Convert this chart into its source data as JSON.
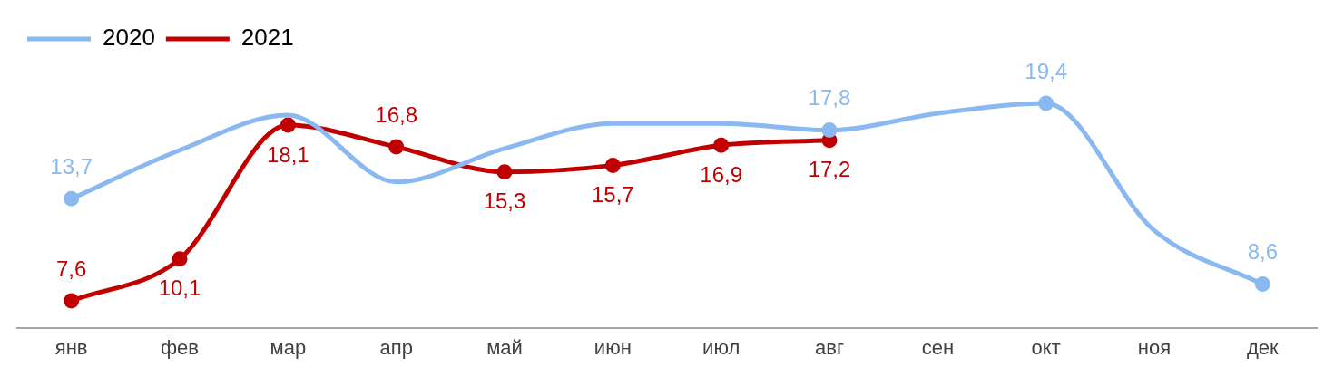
{
  "chart_data": {
    "type": "line",
    "categories": [
      "янв",
      "фев",
      "мар",
      "апр",
      "май",
      "июн",
      "июл",
      "авг",
      "сен",
      "окт",
      "ноя",
      "дек"
    ],
    "series": [
      {
        "name": "2020",
        "color": "#8ab8f0",
        "values": [
          13.7,
          16.6,
          18.7,
          14.7,
          16.7,
          18.2,
          18.2,
          17.8,
          18.8,
          19.4,
          11.8,
          8.6
        ],
        "value_labels": [
          "13,7",
          null,
          null,
          null,
          null,
          null,
          null,
          "17,8",
          null,
          "19,4",
          null,
          "8,6"
        ]
      },
      {
        "name": "2021",
        "color": "#c00000",
        "marker": "circle",
        "values": [
          7.6,
          10.1,
          18.1,
          16.8,
          15.3,
          15.7,
          16.9,
          17.2,
          null,
          null,
          null,
          null
        ],
        "value_labels": [
          "7,6",
          "10,1",
          "18,1",
          "16,8",
          "15,3",
          "15,7",
          "16,9",
          "17,2",
          null,
          null,
          null,
          null
        ]
      }
    ],
    "legend": "top left",
    "grid": false,
    "line_style": "solid"
  }
}
